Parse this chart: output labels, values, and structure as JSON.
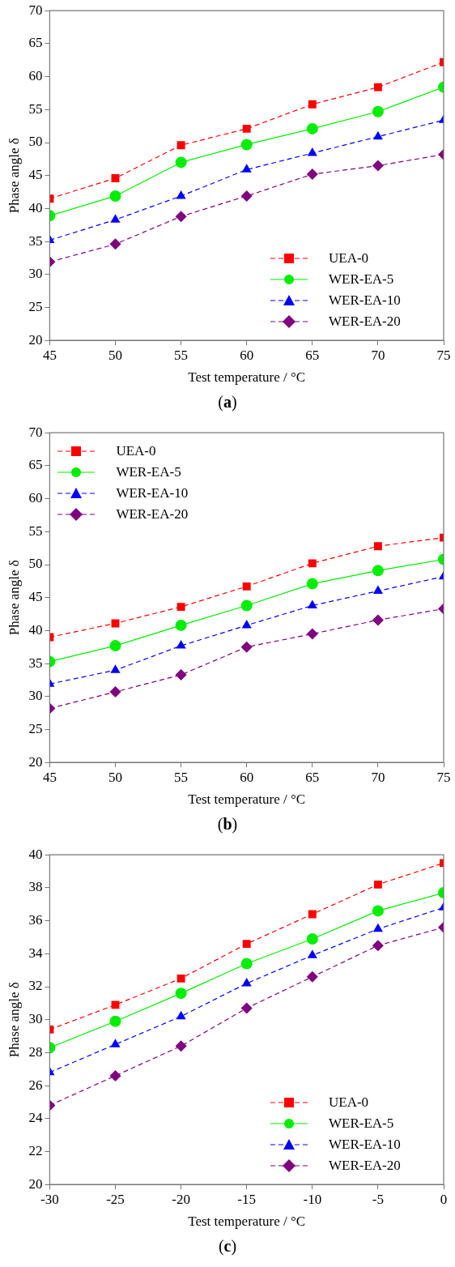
{
  "chart_data": [
    {
      "type": "line",
      "xlabel": "Test temperature / °C",
      "ylabel": "Phase angle δ",
      "annotations": [
        "(a)"
      ],
      "x": [
        45,
        50,
        55,
        60,
        65,
        70,
        75
      ],
      "xlim": [
        45,
        75
      ],
      "xticks": [
        45,
        50,
        55,
        60,
        65,
        70,
        75
      ],
      "ylim": [
        20,
        70
      ],
      "yticks": [
        20,
        25,
        30,
        35,
        40,
        45,
        50,
        55,
        60,
        65,
        70
      ],
      "grid": false,
      "legend": "bottom right",
      "series": [
        {
          "name": "UEA-0",
          "color": "#ff0000",
          "marker": "square",
          "line_style": "dashed",
          "values": [
            41.5,
            44.6,
            49.6,
            52.1,
            55.8,
            58.4,
            62.2
          ]
        },
        {
          "name": "WER-EA-5",
          "color": "#00ee00",
          "marker": "circle",
          "line_style": "solid",
          "values": [
            38.9,
            41.9,
            47.0,
            49.7,
            52.1,
            54.7,
            58.4
          ]
        },
        {
          "name": "WER-EA-10",
          "color": "#0000ff",
          "marker": "triangle",
          "line_style": "dashed",
          "values": [
            35.2,
            38.3,
            41.9,
            45.9,
            48.4,
            50.9,
            53.4
          ]
        },
        {
          "name": "WER-EA-20",
          "color": "#800080",
          "marker": "diamond",
          "line_style": "dashed",
          "values": [
            31.9,
            34.6,
            38.8,
            41.9,
            45.2,
            46.5,
            48.2
          ]
        }
      ]
    },
    {
      "type": "line",
      "xlabel": "Test temperature / °C",
      "ylabel": "Phase angle δ",
      "annotations": [
        "(b)"
      ],
      "x": [
        45,
        50,
        55,
        60,
        65,
        70,
        75
      ],
      "xlim": [
        45,
        75
      ],
      "xticks": [
        45,
        50,
        55,
        60,
        65,
        70,
        75
      ],
      "ylim": [
        20,
        70
      ],
      "yticks": [
        20,
        25,
        30,
        35,
        40,
        45,
        50,
        55,
        60,
        65,
        70
      ],
      "grid": false,
      "legend": "top left",
      "series": [
        {
          "name": "UEA-0",
          "color": "#ff0000",
          "marker": "square",
          "line_style": "dashed",
          "values": [
            39.0,
            41.1,
            43.6,
            46.7,
            50.2,
            52.8,
            54.1
          ]
        },
        {
          "name": "WER-EA-5",
          "color": "#00ee00",
          "marker": "circle",
          "line_style": "solid",
          "values": [
            35.3,
            37.7,
            40.8,
            43.8,
            47.1,
            49.1,
            50.8
          ]
        },
        {
          "name": "WER-EA-10",
          "color": "#0000ff",
          "marker": "triangle",
          "line_style": "dashed",
          "values": [
            31.9,
            34.0,
            37.7,
            40.8,
            43.8,
            46.0,
            48.2
          ]
        },
        {
          "name": "WER-EA-20",
          "color": "#800080",
          "marker": "diamond",
          "line_style": "dashed",
          "values": [
            28.2,
            30.7,
            33.3,
            37.5,
            39.5,
            41.6,
            43.3
          ]
        }
      ]
    },
    {
      "type": "line",
      "xlabel": "Test temperature / °C",
      "ylabel": "Phase angle δ",
      "annotations": [
        "(c)"
      ],
      "x": [
        -30,
        -25,
        -20,
        -15,
        -10,
        -5,
        0
      ],
      "xlim": [
        -30,
        0
      ],
      "xticks": [
        -30,
        -25,
        -20,
        -15,
        -10,
        -5,
        0
      ],
      "ylim": [
        20,
        40
      ],
      "yticks": [
        20,
        22,
        24,
        26,
        28,
        30,
        32,
        34,
        36,
        38,
        40
      ],
      "grid": false,
      "legend": "bottom right",
      "series": [
        {
          "name": "UEA-0",
          "color": "#ff0000",
          "marker": "square",
          "line_style": "dashed",
          "values": [
            29.4,
            30.9,
            32.5,
            34.6,
            36.4,
            38.2,
            39.5
          ]
        },
        {
          "name": "WER-EA-5",
          "color": "#00ee00",
          "marker": "circle",
          "line_style": "solid",
          "values": [
            28.3,
            29.9,
            31.6,
            33.4,
            34.9,
            36.6,
            37.7
          ]
        },
        {
          "name": "WER-EA-10",
          "color": "#0000ff",
          "marker": "triangle",
          "line_style": "dashed",
          "values": [
            26.8,
            28.5,
            30.2,
            32.2,
            33.9,
            35.5,
            36.8
          ]
        },
        {
          "name": "WER-EA-20",
          "color": "#800080",
          "marker": "diamond",
          "line_style": "dashed",
          "values": [
            24.8,
            26.6,
            28.4,
            30.7,
            32.6,
            34.5,
            35.6
          ]
        }
      ]
    }
  ]
}
